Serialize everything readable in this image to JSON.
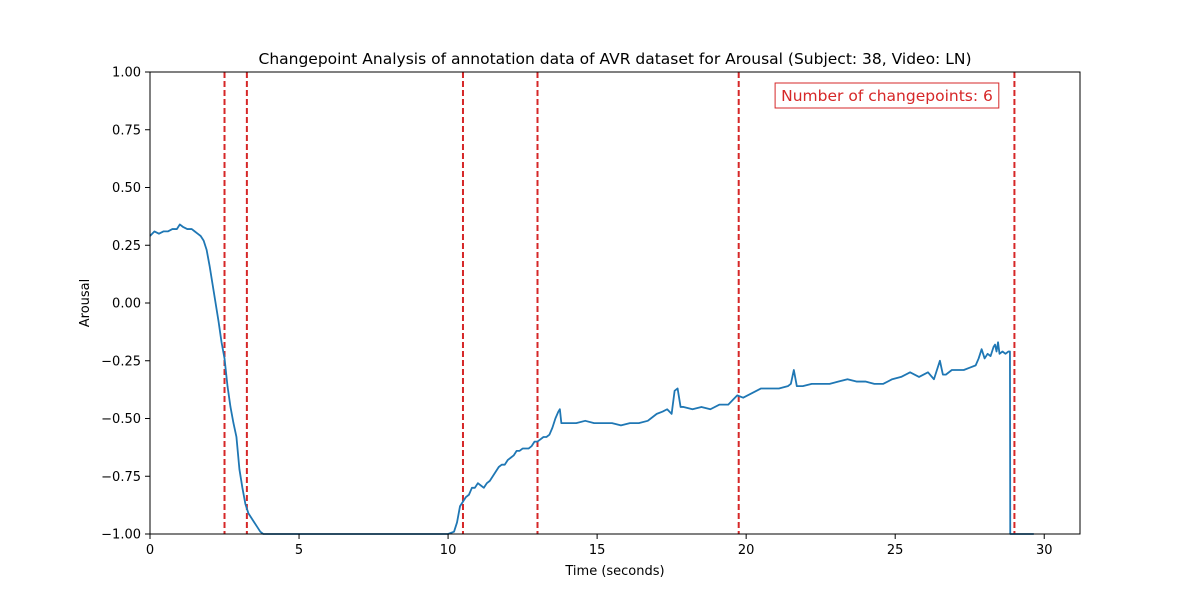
{
  "chart_data": {
    "type": "line",
    "title": "Changepoint Analysis of annotation data of AVR dataset for Arousal (Subject: 38, Video: LN)",
    "xlabel": "Time (seconds)",
    "ylabel": "Arousal",
    "xlim": [
      0,
      31.2
    ],
    "ylim": [
      -1.0,
      1.0
    ],
    "xticks": [
      0,
      5,
      10,
      15,
      20,
      25,
      30
    ],
    "xtick_labels": [
      "0",
      "5",
      "10",
      "15",
      "20",
      "25",
      "30"
    ],
    "yticks": [
      -1.0,
      -0.75,
      -0.5,
      -0.25,
      0.0,
      0.25,
      0.5,
      0.75,
      1.0
    ],
    "ytick_labels": [
      "−1.00",
      "−0.75",
      "−0.50",
      "−0.25",
      "0.00",
      "0.25",
      "0.50",
      "0.75",
      "1.00"
    ],
    "grid": false,
    "line_color": "#1f77b4",
    "changepoint_color": "#d62728",
    "changepoints": [
      2.5,
      3.25,
      10.5,
      13.0,
      19.75,
      29.0
    ],
    "annotation": "Number of changepoints: 6",
    "annotation_location": "top-right",
    "series": [
      {
        "x": [
          0,
          0.15,
          0.3,
          0.45,
          0.6,
          0.75,
          0.9,
          1.0,
          1.1,
          1.25,
          1.4,
          1.5,
          1.6,
          1.7,
          1.8,
          1.9,
          2.0,
          2.1,
          2.2,
          2.3,
          2.4,
          2.5,
          2.6,
          2.7,
          2.8,
          2.9,
          3.0,
          3.1,
          3.2,
          3.3,
          3.4,
          3.5,
          3.6,
          3.7,
          3.8,
          3.9,
          4.0,
          5.0,
          6.0,
          7.0,
          8.0,
          9.0,
          10.0,
          10.2,
          10.3,
          10.4,
          10.5,
          10.6,
          10.7,
          10.8,
          10.9,
          11.0,
          11.1,
          11.2,
          11.3,
          11.4,
          11.5,
          11.6,
          11.7,
          11.8,
          11.9,
          12.0,
          12.1,
          12.2,
          12.3,
          12.4,
          12.5,
          12.6,
          12.7,
          12.8,
          12.9,
          13.0,
          13.1,
          13.2,
          13.3,
          13.4,
          13.5,
          13.6,
          13.7,
          13.75,
          13.8,
          13.9,
          14.0,
          14.3,
          14.6,
          14.9,
          15.2,
          15.5,
          15.8,
          16.1,
          16.4,
          16.7,
          16.8,
          17.0,
          17.2,
          17.35,
          17.5,
          17.6,
          17.7,
          17.8,
          17.9,
          18.2,
          18.5,
          18.8,
          19.1,
          19.4,
          19.7,
          19.9,
          20.2,
          20.5,
          20.8,
          21.1,
          21.4,
          21.5,
          21.6,
          21.7,
          21.9,
          22.2,
          22.5,
          22.8,
          23.1,
          23.4,
          23.7,
          24.0,
          24.3,
          24.6,
          24.9,
          25.2,
          25.5,
          25.8,
          26.1,
          26.3,
          26.5,
          26.6,
          26.7,
          26.9,
          27.1,
          27.3,
          27.5,
          27.7,
          27.8,
          27.9,
          28.0,
          28.1,
          28.2,
          28.3,
          28.35,
          28.4,
          28.45,
          28.5,
          28.6,
          28.7,
          28.8,
          28.85,
          28.86,
          28.9,
          29.0,
          29.5,
          29.65
        ],
        "y": [
          0.29,
          0.31,
          0.3,
          0.31,
          0.31,
          0.32,
          0.32,
          0.34,
          0.33,
          0.32,
          0.32,
          0.31,
          0.3,
          0.29,
          0.27,
          0.23,
          0.16,
          0.08,
          0.0,
          -0.08,
          -0.17,
          -0.24,
          -0.36,
          -0.45,
          -0.52,
          -0.58,
          -0.72,
          -0.8,
          -0.87,
          -0.91,
          -0.93,
          -0.95,
          -0.97,
          -0.99,
          -1.0,
          -1.0,
          -1.0,
          -1.0,
          -1.0,
          -1.0,
          -1.0,
          -1.0,
          -1.0,
          -0.99,
          -0.95,
          -0.88,
          -0.86,
          -0.84,
          -0.83,
          -0.8,
          -0.8,
          -0.78,
          -0.79,
          -0.8,
          -0.78,
          -0.77,
          -0.75,
          -0.73,
          -0.71,
          -0.7,
          -0.7,
          -0.68,
          -0.67,
          -0.66,
          -0.64,
          -0.64,
          -0.63,
          -0.63,
          -0.63,
          -0.62,
          -0.6,
          -0.6,
          -0.59,
          -0.58,
          -0.58,
          -0.57,
          -0.54,
          -0.5,
          -0.47,
          -0.46,
          -0.52,
          -0.52,
          -0.52,
          -0.52,
          -0.51,
          -0.52,
          -0.52,
          -0.52,
          -0.53,
          -0.52,
          -0.52,
          -0.51,
          -0.5,
          -0.48,
          -0.47,
          -0.46,
          -0.48,
          -0.38,
          -0.37,
          -0.45,
          -0.45,
          -0.46,
          -0.45,
          -0.46,
          -0.44,
          -0.44,
          -0.4,
          -0.41,
          -0.39,
          -0.37,
          -0.37,
          -0.37,
          -0.36,
          -0.35,
          -0.29,
          -0.36,
          -0.36,
          -0.35,
          -0.35,
          -0.35,
          -0.34,
          -0.33,
          -0.34,
          -0.34,
          -0.35,
          -0.35,
          -0.33,
          -0.32,
          -0.3,
          -0.32,
          -0.3,
          -0.33,
          -0.25,
          -0.31,
          -0.31,
          -0.29,
          -0.29,
          -0.29,
          -0.28,
          -0.27,
          -0.24,
          -0.2,
          -0.24,
          -0.22,
          -0.23,
          -0.19,
          -0.18,
          -0.21,
          -0.17,
          -0.22,
          -0.21,
          -0.22,
          -0.21,
          -0.21,
          -1.0,
          -1.0,
          -1.0,
          -1.0,
          -1.0
        ]
      }
    ]
  }
}
